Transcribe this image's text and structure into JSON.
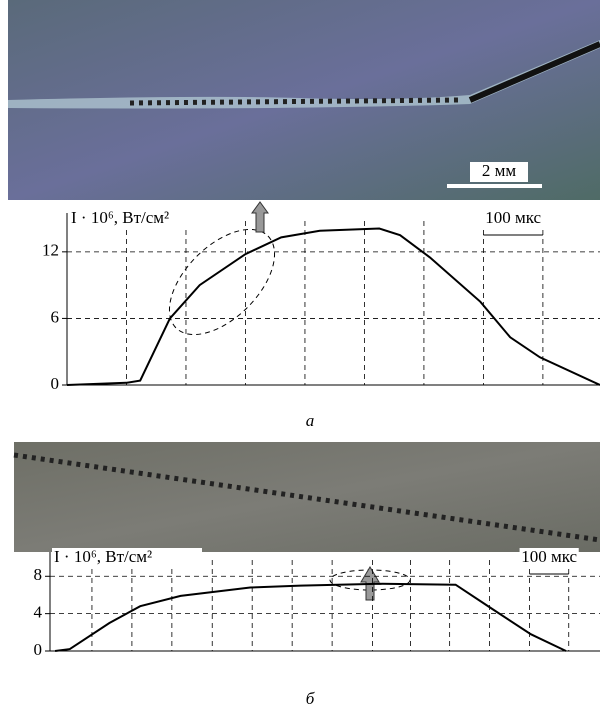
{
  "chart_data": [
    {
      "type": "line",
      "scale_label": "2 мм",
      "ylabel": "I · 10⁶, Вт/см²",
      "annotation": "100 мкс",
      "caption": "а",
      "x": [
        0,
        100,
        123,
        173,
        223,
        300,
        360,
        425,
        525,
        560,
        610,
        695,
        745,
        795,
        896
      ],
      "values": [
        0,
        0.2,
        0.4,
        6,
        9,
        11.8,
        13.3,
        13.9,
        14.1,
        13.5,
        11.5,
        7.5,
        4.3,
        2.5,
        0
      ],
      "color": "#000000",
      "xlim": [
        0,
        896
      ],
      "ylim": [
        0,
        15.5
      ],
      "yticks": [
        0,
        6,
        12
      ],
      "xticks": [
        100,
        200,
        300,
        400,
        500,
        600,
        700,
        800
      ],
      "grid": true
    },
    {
      "type": "line",
      "ylabel": "I · 10⁶, Вт/см²",
      "annotation": "100 мкс",
      "caption": "б",
      "x": [
        13,
        50,
        150,
        228,
        330,
        506,
        633,
        835,
        1025,
        1114,
        1215,
        1304
      ],
      "values": [
        0,
        0.2,
        3,
        4.8,
        5.9,
        6.8,
        7,
        7.2,
        7.1,
        4.6,
        1.8,
        0
      ],
      "color": "#000000",
      "xlim": [
        0,
        1390
      ],
      "ylim": [
        0,
        10.6
      ],
      "yticks": [
        0,
        4,
        8
      ],
      "xticks": [
        106,
        207,
        308,
        410,
        511,
        612,
        713,
        815,
        911,
        1010,
        1111,
        1212,
        1311
      ],
      "grid": true
    }
  ]
}
